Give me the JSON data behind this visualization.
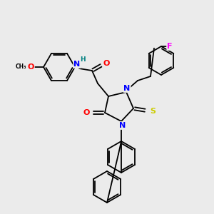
{
  "background_color": "#ebebeb",
  "atom_colors": {
    "N": "#0000ff",
    "O": "#ff0000",
    "S": "#cccc00",
    "F": "#ff00ff",
    "H_on_N": "#008080",
    "C": "#000000"
  },
  "font_size_atom": 7.0,
  "line_width": 1.3
}
